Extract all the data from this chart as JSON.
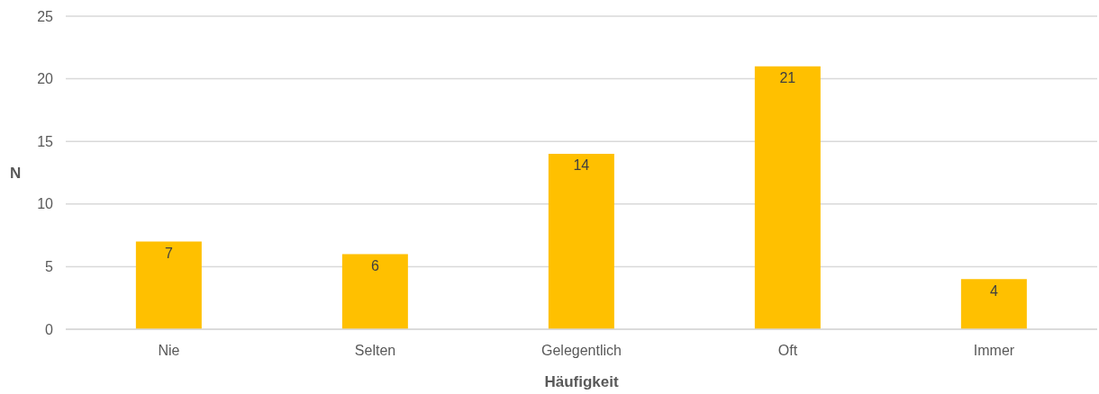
{
  "chart_data": {
    "type": "bar",
    "xlabel": "Häufigkeit",
    "ylabel": "N",
    "categories": [
      "Nie",
      "Selten",
      "Gelegentlich",
      "Oft",
      "Immer"
    ],
    "values": [
      7,
      6,
      14,
      21,
      4
    ],
    "color": "#ffc000",
    "ylim": [
      0,
      25
    ],
    "yticks": [
      0,
      5,
      10,
      15,
      20,
      25
    ],
    "grid": "y",
    "data_labels": true
  }
}
